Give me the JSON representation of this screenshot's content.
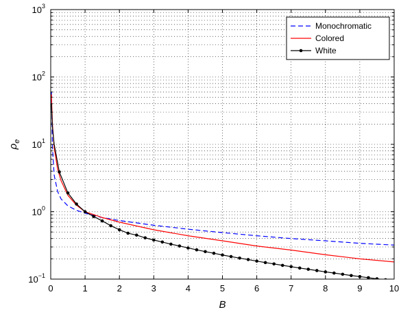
{
  "chart_data": {
    "type": "line",
    "xlabel": "B",
    "ylabel": "ρ",
    "ylabel_subscript": "e",
    "x_axis": {
      "min": 0,
      "max": 10,
      "ticks": [
        "0",
        "1",
        "2",
        "3",
        "4",
        "5",
        "6",
        "7",
        "8",
        "9",
        "10"
      ]
    },
    "y_axis": {
      "scale": "log",
      "min": 0.1,
      "max": 1000,
      "ticks": [
        {
          "value": 0.1,
          "base": "10",
          "exp": "−1"
        },
        {
          "value": 1,
          "base": "10",
          "exp": "0"
        },
        {
          "value": 10,
          "base": "10",
          "exp": "1"
        },
        {
          "value": 100,
          "base": "10",
          "exp": "2"
        },
        {
          "value": 1000,
          "base": "10",
          "exp": "3"
        }
      ]
    },
    "grid": true,
    "legend_position": "top-right",
    "series": [
      {
        "name": "Monochromatic",
        "color": "#0000ff",
        "style": "dashed",
        "marker": "none",
        "points": [
          [
            0.02,
            60
          ],
          [
            0.05,
            9
          ],
          [
            0.1,
            3.5
          ],
          [
            0.2,
            2.0
          ],
          [
            0.3,
            1.55
          ],
          [
            0.5,
            1.22
          ],
          [
            0.75,
            1.05
          ],
          [
            1,
            0.95
          ],
          [
            1.5,
            0.82
          ],
          [
            2,
            0.74
          ],
          [
            3,
            0.63
          ],
          [
            4,
            0.55
          ],
          [
            5,
            0.49
          ],
          [
            6,
            0.44
          ],
          [
            7,
            0.4
          ],
          [
            8,
            0.37
          ],
          [
            9,
            0.34
          ],
          [
            10,
            0.32
          ]
        ]
      },
      {
        "name": "Colored",
        "color": "#ff0000",
        "style": "solid",
        "marker": "none",
        "points": [
          [
            0.02,
            55
          ],
          [
            0.05,
            20
          ],
          [
            0.1,
            9
          ],
          [
            0.2,
            4.3
          ],
          [
            0.3,
            2.9
          ],
          [
            0.5,
            1.75
          ],
          [
            0.75,
            1.25
          ],
          [
            1,
            1.0
          ],
          [
            1.5,
            0.82
          ],
          [
            2,
            0.7
          ],
          [
            3,
            0.54
          ],
          [
            4,
            0.44
          ],
          [
            5,
            0.37
          ],
          [
            6,
            0.31
          ],
          [
            7,
            0.27
          ],
          [
            8,
            0.23
          ],
          [
            9,
            0.2
          ],
          [
            10,
            0.18
          ]
        ]
      },
      {
        "name": "White",
        "color": "#000000",
        "style": "solid",
        "marker": "dot",
        "points": [
          [
            0.02,
            40
          ],
          [
            0.05,
            18
          ],
          [
            0.1,
            10
          ],
          [
            0.25,
            3.9
          ],
          [
            0.5,
            1.9
          ],
          [
            0.75,
            1.3
          ],
          [
            1,
            1.0
          ],
          [
            1.25,
            0.85
          ],
          [
            1.5,
            0.73
          ],
          [
            1.75,
            0.62
          ],
          [
            2,
            0.54
          ],
          [
            2.25,
            0.48
          ],
          [
            2.5,
            0.45
          ],
          [
            2.75,
            0.41
          ],
          [
            3,
            0.38
          ],
          [
            3.25,
            0.355
          ],
          [
            3.5,
            0.33
          ],
          [
            3.75,
            0.31
          ],
          [
            4,
            0.29
          ],
          [
            4.25,
            0.272
          ],
          [
            4.5,
            0.256
          ],
          [
            4.75,
            0.242
          ],
          [
            5,
            0.228
          ],
          [
            5.25,
            0.216
          ],
          [
            5.5,
            0.205
          ],
          [
            5.75,
            0.195
          ],
          [
            6,
            0.185
          ],
          [
            6.25,
            0.176
          ],
          [
            6.5,
            0.168
          ],
          [
            6.75,
            0.16
          ],
          [
            7,
            0.153
          ],
          [
            7.25,
            0.146
          ],
          [
            7.5,
            0.14
          ],
          [
            7.75,
            0.134
          ],
          [
            8,
            0.128
          ],
          [
            8.25,
            0.123
          ],
          [
            8.5,
            0.118
          ],
          [
            8.75,
            0.113
          ],
          [
            9,
            0.109
          ],
          [
            9.25,
            0.105
          ],
          [
            9.5,
            0.101
          ],
          [
            9.75,
            0.098
          ],
          [
            10,
            0.095
          ]
        ],
        "markers": [
          0.25,
          0.5,
          0.75,
          1,
          1.25,
          1.5,
          1.75,
          2,
          2.25,
          2.5,
          2.75,
          3,
          3.25,
          3.5,
          3.75,
          4,
          4.25,
          4.5,
          4.75,
          5,
          5.25,
          5.5,
          5.75,
          6,
          6.25,
          6.5,
          6.75,
          7,
          7.25,
          7.5,
          7.75,
          8,
          8.25,
          8.5,
          8.75,
          9,
          9.25,
          9.5,
          9.75,
          10
        ]
      }
    ]
  }
}
